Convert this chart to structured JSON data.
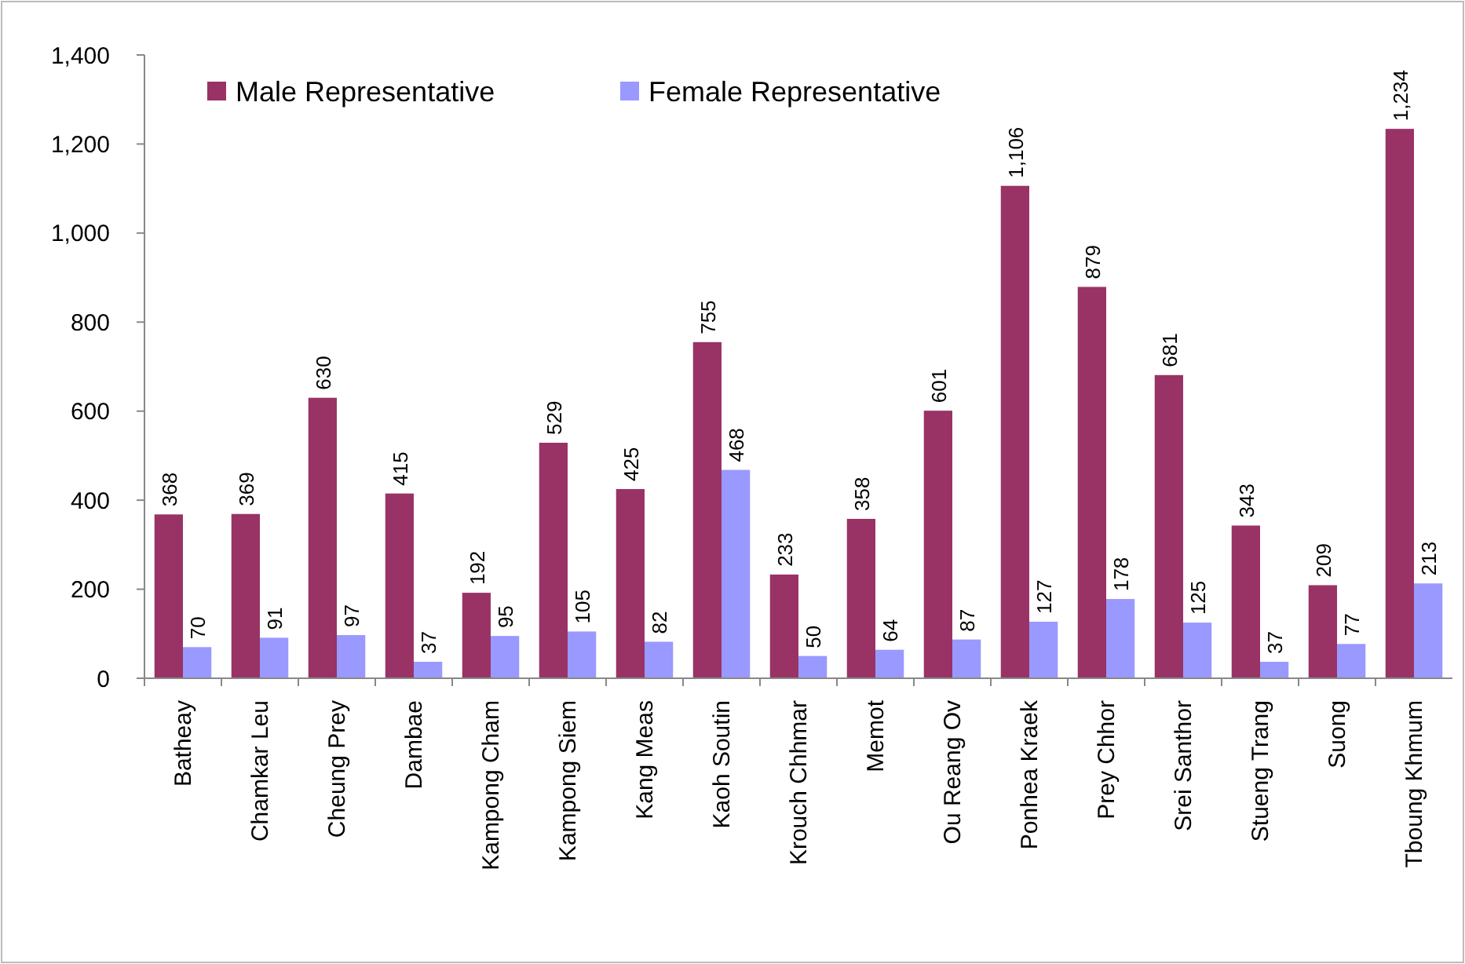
{
  "chart_data": {
    "type": "bar",
    "categories": [
      "Batheay",
      "Chamkar Leu",
      "Cheung Prey",
      "Dambae",
      "Kampong Cham",
      "Kampong Siem",
      "Kang Meas",
      "Kaoh Soutin",
      "Krouch Chhmar",
      "Memot",
      "Ou Reang Ov",
      "Ponhea Kraek",
      "Prey Chhor",
      "Srei Santhor",
      "Stueng Trang",
      "Suong",
      "Tboung Khmum"
    ],
    "series": [
      {
        "name": "Male Representative",
        "color": "#993366",
        "values": [
          368,
          369,
          630,
          415,
          192,
          529,
          425,
          755,
          233,
          358,
          601,
          1106,
          879,
          681,
          343,
          209,
          1234
        ],
        "value_labels": [
          "368",
          "369",
          "630",
          "415",
          "192",
          "529",
          "425",
          "755",
          "233",
          "358",
          "601",
          "1,106",
          "879",
          "681",
          "343",
          "209",
          "1,234"
        ]
      },
      {
        "name": "Female Representative",
        "color": "#9999ff",
        "values": [
          70,
          91,
          97,
          37,
          95,
          105,
          82,
          468,
          50,
          64,
          87,
          127,
          178,
          125,
          37,
          77,
          213
        ],
        "value_labels": [
          "70",
          "91",
          "97",
          "37",
          "95",
          "105",
          "82",
          "468",
          "50",
          "64",
          "87",
          "127",
          "178",
          "125",
          "37",
          "77",
          "213"
        ]
      }
    ],
    "ylim": [
      0,
      1400
    ],
    "yticks": [
      {
        "value": 0,
        "label": "0"
      },
      {
        "value": 200,
        "label": "200"
      },
      {
        "value": 400,
        "label": "400"
      },
      {
        "value": 600,
        "label": "600"
      },
      {
        "value": 800,
        "label": "800"
      },
      {
        "value": 1000,
        "label": "1,000"
      },
      {
        "value": 1200,
        "label": "1,200"
      },
      {
        "value": 1400,
        "label": "1,400"
      }
    ],
    "grid": false,
    "legend": "top left"
  }
}
